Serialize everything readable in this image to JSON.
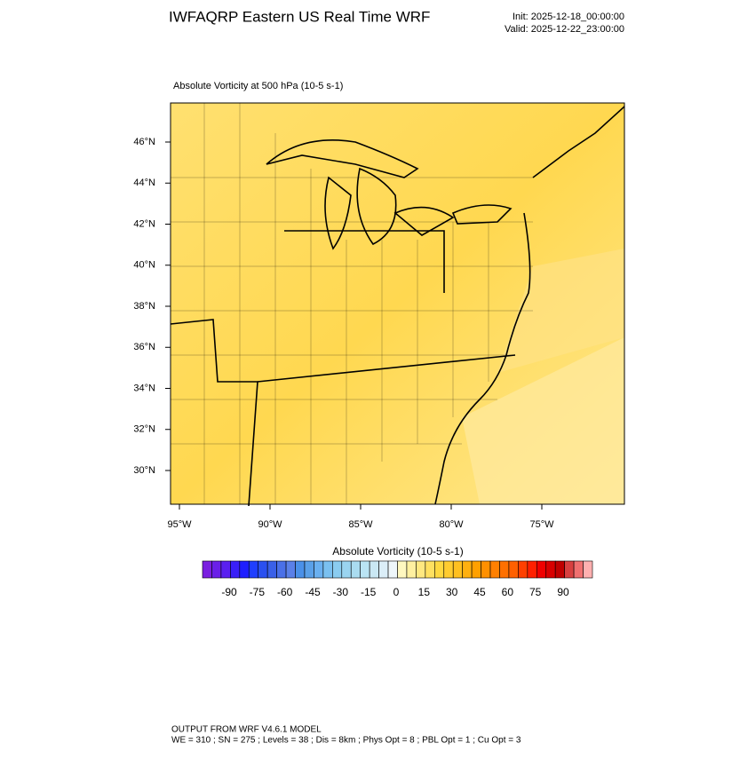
{
  "header": {
    "title": "IWFAQRP Eastern US Real Time WRF",
    "init": "Init: 2025-12-18_00:00:00",
    "valid": "Valid: 2025-12-22_23:00:00"
  },
  "map": {
    "title": "Absolute Vorticity at 500 hPa   (10-5 s-1)",
    "lat_labels": [
      "46°N",
      "44°N",
      "42°N",
      "40°N",
      "38°N",
      "36°N",
      "34°N",
      "32°N",
      "30°N"
    ],
    "lon_labels": [
      "95°W",
      "90°W",
      "85°W",
      "80°W",
      "75°W"
    ]
  },
  "colorbar": {
    "title": "Absolute Vorticity  (10-5 s-1)",
    "ticks": [
      -90,
      -75,
      -60,
      -45,
      -30,
      -15,
      0,
      15,
      30,
      45,
      60,
      75,
      90
    ],
    "colors": [
      "#7a1fe0",
      "#6a1fe8",
      "#5a1ff0",
      "#3a1ff8",
      "#1f1fff",
      "#1f3fff",
      "#2a50f0",
      "#3a60e8",
      "#4a70e8",
      "#5a80e8",
      "#4a90e8",
      "#5aa0e8",
      "#6ab0f0",
      "#7ac0f0",
      "#8accf0",
      "#9ad4f0",
      "#aadcf0",
      "#bae4f4",
      "#cae8f4",
      "#dbeef8",
      "#eef6fa",
      "#fff8c0",
      "#fff0a0",
      "#ffe880",
      "#ffe060",
      "#ffd840",
      "#ffcc30",
      "#ffc020",
      "#ffb010",
      "#ffa000",
      "#ff9000",
      "#ff8000",
      "#ff7000",
      "#ff6000",
      "#ff4000",
      "#ff2000",
      "#f00000",
      "#d80000",
      "#c00000",
      "#d84040",
      "#f07070",
      "#ffb0b0"
    ]
  },
  "footer": {
    "line1": "OUTPUT FROM WRF V4.6.1 MODEL",
    "line2": "WE = 310 ; SN = 275 ; Levels = 38 ; Dis = 8km ; Phys Opt = 8 ; PBL Opt = 1 ; Cu Opt = 3"
  }
}
